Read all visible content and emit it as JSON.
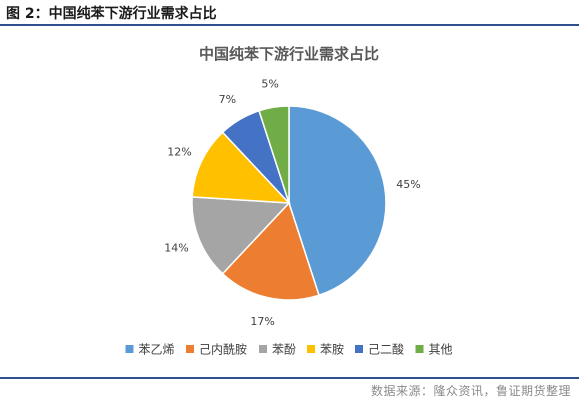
{
  "figure": {
    "caption": "图 2：中国纯苯下游行业需求占比",
    "source": "数据来源：隆众资讯，鲁证期货整理"
  },
  "chart_data": {
    "type": "pie",
    "title": "中国纯苯下游行业需求占比",
    "categories": [
      "苯乙烯",
      "己内酰胺",
      "苯酚",
      "苯胺",
      "己二酸",
      "其他"
    ],
    "values": [
      45,
      17,
      14,
      12,
      7,
      5
    ],
    "labels": [
      "45%",
      "17%",
      "14%",
      "12%",
      "7%",
      "5%"
    ],
    "colors": [
      "#5b9bd5",
      "#ed7d31",
      "#a5a5a5",
      "#ffc000",
      "#4472c4",
      "#70ad47"
    ],
    "legend_position": "bottom",
    "start_angle": "top",
    "direction": "clockwise"
  }
}
